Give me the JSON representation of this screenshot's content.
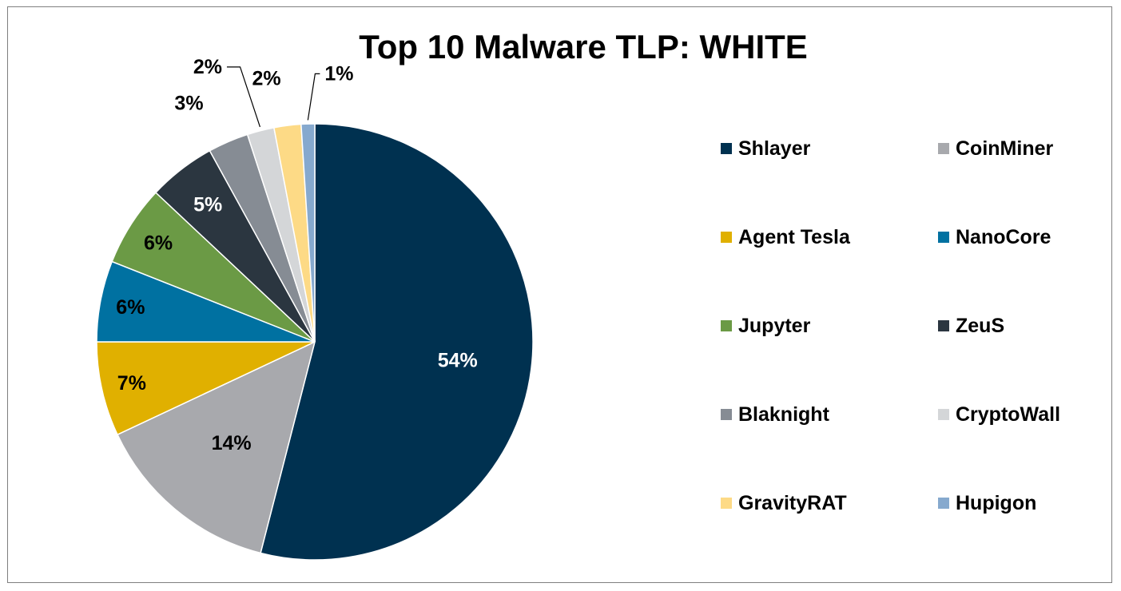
{
  "chart_data": {
    "type": "pie",
    "title": "Top 10 Malware TLP: WHITE",
    "slices": [
      {
        "name": "Shlayer",
        "value": 54,
        "label": "54%",
        "color": "#003150"
      },
      {
        "name": "CoinMiner",
        "value": 14,
        "label": "14%",
        "color": "#A8A9AD"
      },
      {
        "name": "Agent Tesla",
        "value": 7,
        "label": "7%",
        "color": "#E0B000"
      },
      {
        "name": "NanoCore",
        "value": 6,
        "label": "6%",
        "color": "#0071A1"
      },
      {
        "name": "Jupyter",
        "value": 6,
        "label": "6%",
        "color": "#6B9A45"
      },
      {
        "name": "ZeuS",
        "value": 5,
        "label": "5%",
        "color": "#2B3640"
      },
      {
        "name": "Blaknight",
        "value": 3,
        "label": "3%",
        "color": "#868C94"
      },
      {
        "name": "CryptoWall",
        "value": 2,
        "label": "2%",
        "color": "#D4D6D8"
      },
      {
        "name": "GravityRAT",
        "value": 2,
        "label": "2%",
        "color": "#FDDA86"
      },
      {
        "name": "Hupigon",
        "value": 1,
        "label": "1%",
        "color": "#86A9CE"
      }
    ],
    "legend_position": "right"
  }
}
